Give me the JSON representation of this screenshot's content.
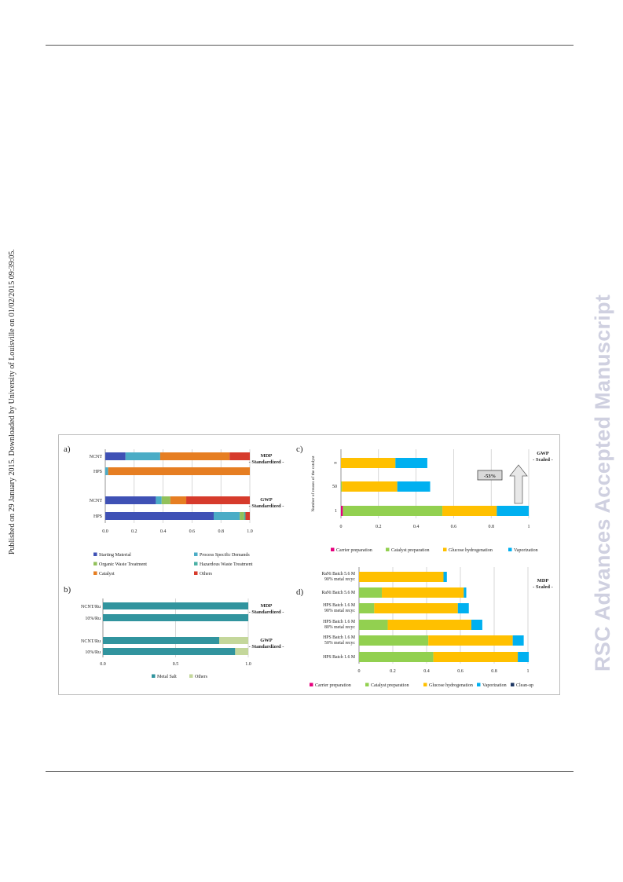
{
  "page": {
    "sidebar_note": "Published on 29 January 2015. Downloaded by University of Louisville on 01/02/2015 09:39:05.",
    "watermark": "RSC Advances Accepted Manuscript"
  },
  "chart_data": [
    {
      "panel": "a)",
      "type": "bar",
      "orientation": "horizontal",
      "stacked": true,
      "groups": [
        {
          "label_lines": [
            "MDP",
            "- Standardized -"
          ],
          "categories": [
            "NCNT",
            "HPS"
          ]
        },
        {
          "label_lines": [
            "GWP",
            "- Standardized -"
          ],
          "categories": [
            "NCNT",
            "HPS"
          ]
        }
      ],
      "colors": [
        "#3f51b5",
        "#4bacc6",
        "#92c15b",
        "#4bb0a5",
        "#e67e22",
        "#d63b2c"
      ],
      "series": [
        {
          "name": "Starting Material",
          "values": [
            0.14,
            0.0,
            0.35,
            0.75
          ]
        },
        {
          "name": "Process Specific Demands",
          "values": [
            0.24,
            0.02,
            0.04,
            0.18
          ]
        },
        {
          "name": "Organic Waste Treatment",
          "values": [
            0.0,
            0.0,
            0.06,
            0.03
          ]
        },
        {
          "name": "Hazardous Waste Treatment",
          "values": [
            0.0,
            0.0,
            0.0,
            0.01
          ]
        },
        {
          "name": "Catalyst",
          "values": [
            0.48,
            0.98,
            0.11,
            0.0
          ]
        },
        {
          "name": "Others",
          "values": [
            0.14,
            0.0,
            0.44,
            0.03
          ]
        }
      ],
      "xlim": [
        0,
        1
      ],
      "xticks": [
        "0.0",
        "0.2",
        "0.4",
        "0.6",
        "0.8",
        "1.0"
      ],
      "legend_position": "bottom"
    },
    {
      "panel": "b)",
      "type": "bar",
      "orientation": "horizontal",
      "stacked": true,
      "groups": [
        {
          "label_lines": [
            "MDP",
            "- Standardized -"
          ],
          "categories": [
            "NCNT/Ru",
            "10%/Ru"
          ]
        },
        {
          "label_lines": [
            "GWP",
            "- Standardized -"
          ],
          "categories": [
            "NCNT/Ru",
            "10%/Ru"
          ]
        }
      ],
      "colors": [
        "#31949e",
        "#c4d79b"
      ],
      "series": [
        {
          "name": "Metal Salt",
          "values": [
            1.0,
            1.0,
            0.8,
            0.91
          ]
        },
        {
          "name": "Others",
          "values": [
            0.0,
            0.0,
            0.2,
            0.09
          ]
        }
      ],
      "xlim": [
        0,
        1
      ],
      "xticks": [
        "0.0",
        "0.5",
        "1.0"
      ],
      "legend_position": "bottom"
    },
    {
      "panel": "c)",
      "type": "bar",
      "orientation": "horizontal",
      "stacked": true,
      "corner_label_lines": [
        "GWP",
        "- Scaled -"
      ],
      "ylabel": "Number of reuses of the catalyst",
      "categories": [
        "∞",
        "50",
        "1"
      ],
      "colors": [
        "#e6007e",
        "#92d050",
        "#ffc000",
        "#00b0f0"
      ],
      "series": [
        {
          "name": "Carrier preparation",
          "values": [
            0.0,
            0.0,
            0.01
          ]
        },
        {
          "name": "Catalyst preparation",
          "values": [
            0.0,
            0.005,
            0.53
          ]
        },
        {
          "name": "Glucose hydrogenation",
          "values": [
            0.29,
            0.295,
            0.29
          ]
        },
        {
          "name": "Vaporization",
          "values": [
            0.17,
            0.175,
            0.17
          ]
        }
      ],
      "annotation": "-53%",
      "xlim": [
        0,
        1
      ],
      "xticks": [
        "0",
        "0.2",
        "0.4",
        "0.6",
        "0.8",
        "1"
      ],
      "legend_position": "bottom"
    },
    {
      "panel": "d)",
      "type": "bar",
      "orientation": "horizontal",
      "stacked": true,
      "corner_label_lines": [
        "MDP",
        "- Scaled -"
      ],
      "categories": [
        [
          "RaNi Batch 5.6 M",
          "90% metal recyc"
        ],
        [
          "RaNi Batch 5.6 M"
        ],
        [
          "HPS Batch 1.6 M",
          "90% metal recyc"
        ],
        [
          "HPS Batch 1.6 M",
          "80% metal recyc"
        ],
        [
          "HPS Batch 1.6 M",
          "50% metal recyc"
        ],
        [
          "HPS Batch 1.6 M"
        ]
      ],
      "colors": [
        "#e6007e",
        "#92d050",
        "#ffc000",
        "#00b0f0",
        "#1f3864"
      ],
      "series": [
        {
          "name": "Carrier preparation",
          "values": [
            0,
            0,
            0,
            0,
            0,
            0
          ]
        },
        {
          "name": "Catalyst preparation",
          "values": [
            0.0,
            0.135,
            0.09,
            0.17,
            0.41,
            0.44
          ]
        },
        {
          "name": "Glucose hydrogenation",
          "values": [
            0.5,
            0.485,
            0.495,
            0.495,
            0.5,
            0.5
          ]
        },
        {
          "name": "Vaporization",
          "values": [
            0.02,
            0.015,
            0.065,
            0.065,
            0.065,
            0.065
          ]
        },
        {
          "name": "Clean-up",
          "values": [
            0,
            0,
            0,
            0,
            0,
            0
          ]
        }
      ],
      "xlim": [
        0,
        1
      ],
      "xticks": [
        "0",
        "0.2",
        "0.4",
        "0.6",
        "0.8",
        "1"
      ],
      "legend_position": "bottom"
    }
  ]
}
